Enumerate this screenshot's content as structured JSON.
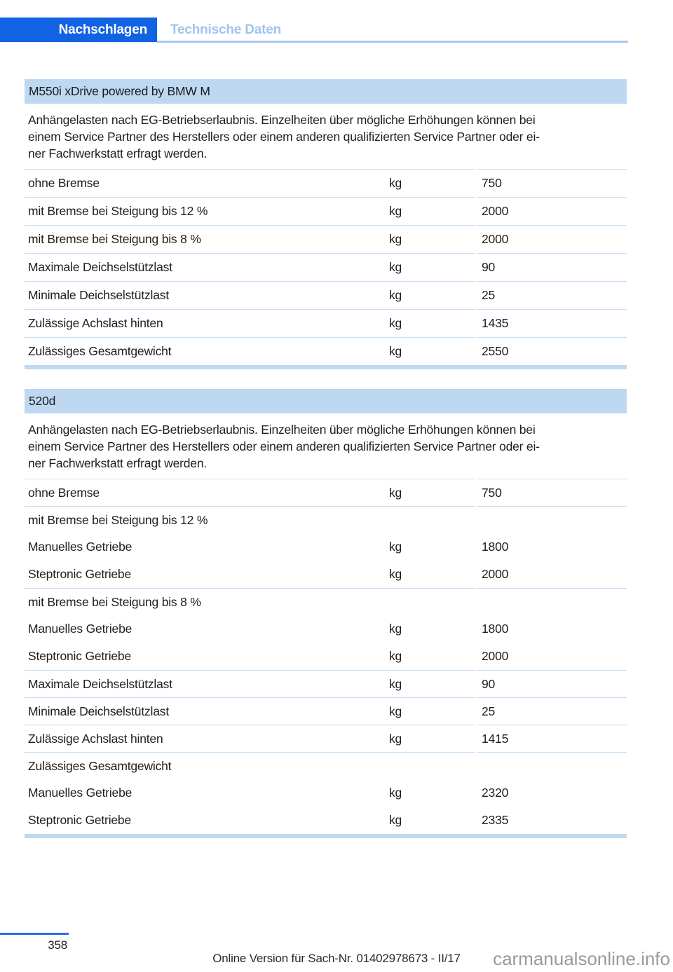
{
  "tabs": {
    "active": "Nachschlagen",
    "section": "Technische Daten"
  },
  "colors": {
    "accent_blue": "#1262e4",
    "inactive_tab_blue": "#9fc4ef",
    "section_header_bg": "#bed8f2",
    "table_line_blue": "#c2dcf4",
    "table_end_bar": "#c1d9f0",
    "footer_line_blue": "#2b6fe3",
    "watermark_gray": "#9a9a9a"
  },
  "sections": [
    {
      "title": "M550i xDrive powered by BMW M",
      "intro_lines": [
        "Anhängelasten nach EG-Betriebserlaubnis. Einzelheiten über mögliche Erhöhungen können bei",
        "einem Service Partner des Herstellers oder einem anderen qualifizierten Service Partner oder ei-",
        "ner Fachwerkstatt erfragt werden."
      ],
      "rows": [
        {
          "label": "ohne Bremse",
          "unit": "kg",
          "value": "750"
        },
        {
          "label": "mit Bremse bei Steigung bis 12 %",
          "unit": "kg",
          "value": "2000"
        },
        {
          "label": "mit Bremse bei Steigung bis 8 %",
          "unit": "kg",
          "value": "2000"
        },
        {
          "label": "Maximale Deichselstützlast",
          "unit": "kg",
          "value": "90"
        },
        {
          "label": "Minimale Deichselstützlast",
          "unit": "kg",
          "value": "25"
        },
        {
          "label": "Zulässige Achslast hinten",
          "unit": "kg",
          "value": "1435"
        },
        {
          "label": "Zulässiges Gesamtgewicht",
          "unit": "kg",
          "value": "2550"
        }
      ]
    },
    {
      "title": "520d",
      "intro_lines": [
        "Anhängelasten nach EG-Betriebserlaubnis. Einzelheiten über mögliche Erhöhungen können bei",
        "einem Service Partner des Herstellers oder einem anderen qualifizierten Service Partner oder ei-",
        "ner Fachwerkstatt erfragt werden."
      ],
      "rows": [
        {
          "label": "ohne Bremse",
          "unit": "kg",
          "value": "750"
        },
        {
          "label": "mit Bremse bei Steigung bis 12 %",
          "unit": "",
          "value": ""
        },
        {
          "label": "Manuelles Getriebe",
          "unit": "kg",
          "value": "1800"
        },
        {
          "label": "Steptronic Getriebe",
          "unit": "kg",
          "value": "2000"
        },
        {
          "label": "mit Bremse bei Steigung bis 8 %",
          "unit": "",
          "value": ""
        },
        {
          "label": "Manuelles Getriebe",
          "unit": "kg",
          "value": "1800"
        },
        {
          "label": "Steptronic Getriebe",
          "unit": "kg",
          "value": "2000"
        },
        {
          "label": "Maximale Deichselstützlast",
          "unit": "kg",
          "value": "90"
        },
        {
          "label": "Minimale Deichselstützlast",
          "unit": "kg",
          "value": "25"
        },
        {
          "label": "Zulässige Achslast hinten",
          "unit": "kg",
          "value": "1415"
        },
        {
          "label": "Zulässiges Gesamtgewicht",
          "unit": "",
          "value": ""
        },
        {
          "label": "Manuelles Getriebe",
          "unit": "kg",
          "value": "2320"
        },
        {
          "label": "Steptronic Getriebe",
          "unit": "kg",
          "value": "2335"
        }
      ]
    }
  ],
  "footer": {
    "page_number": "358",
    "version_text": "Online Version für Sach-Nr. 01402978673 - II/17",
    "watermark": "carmanualsonline.info"
  }
}
